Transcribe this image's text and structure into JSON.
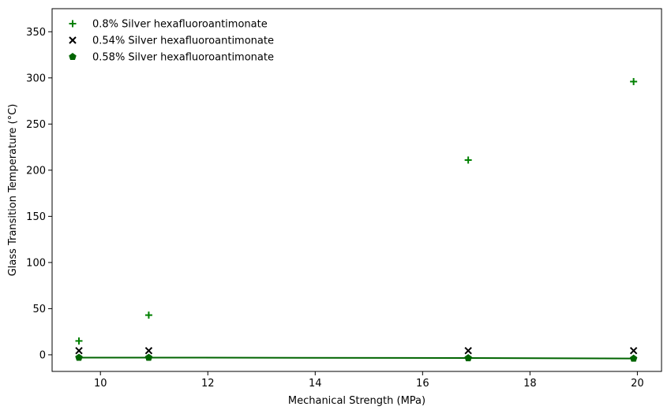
{
  "chart_data": {
    "type": "scatter",
    "xlabel": "Mechanical Strength (MPa)",
    "ylabel": "Glass Transition Temperature (°C)",
    "xlim": [
      9.1,
      20.45
    ],
    "ylim": [
      -18,
      375
    ],
    "x_ticks": [
      10,
      12,
      14,
      16,
      18,
      20
    ],
    "y_ticks": [
      0,
      50,
      100,
      150,
      200,
      250,
      300,
      350
    ],
    "grid": false,
    "legend_position": "top-left",
    "series": [
      {
        "name": "0.8% Silver hexafluoroantimonate",
        "marker": "plus",
        "color": "#008000",
        "x": [
          9.6,
          10.9,
          16.85,
          19.93
        ],
        "y": [
          15,
          43,
          211,
          296
        ]
      },
      {
        "name": "0.54% Silver hexafluoroantimonate",
        "marker": "x",
        "color": "#000000",
        "x": [
          9.6,
          10.9,
          16.85,
          19.93
        ],
        "y": [
          4.5,
          4.5,
          4.5,
          4.5
        ]
      },
      {
        "name": "0.58% Silver hexafluoroantimonate",
        "marker": "pentagon",
        "color": "#006400",
        "line": true,
        "x": [
          9.6,
          10.9,
          16.85,
          19.93
        ],
        "y": [
          -3,
          -3,
          -3.5,
          -4
        ]
      }
    ]
  }
}
